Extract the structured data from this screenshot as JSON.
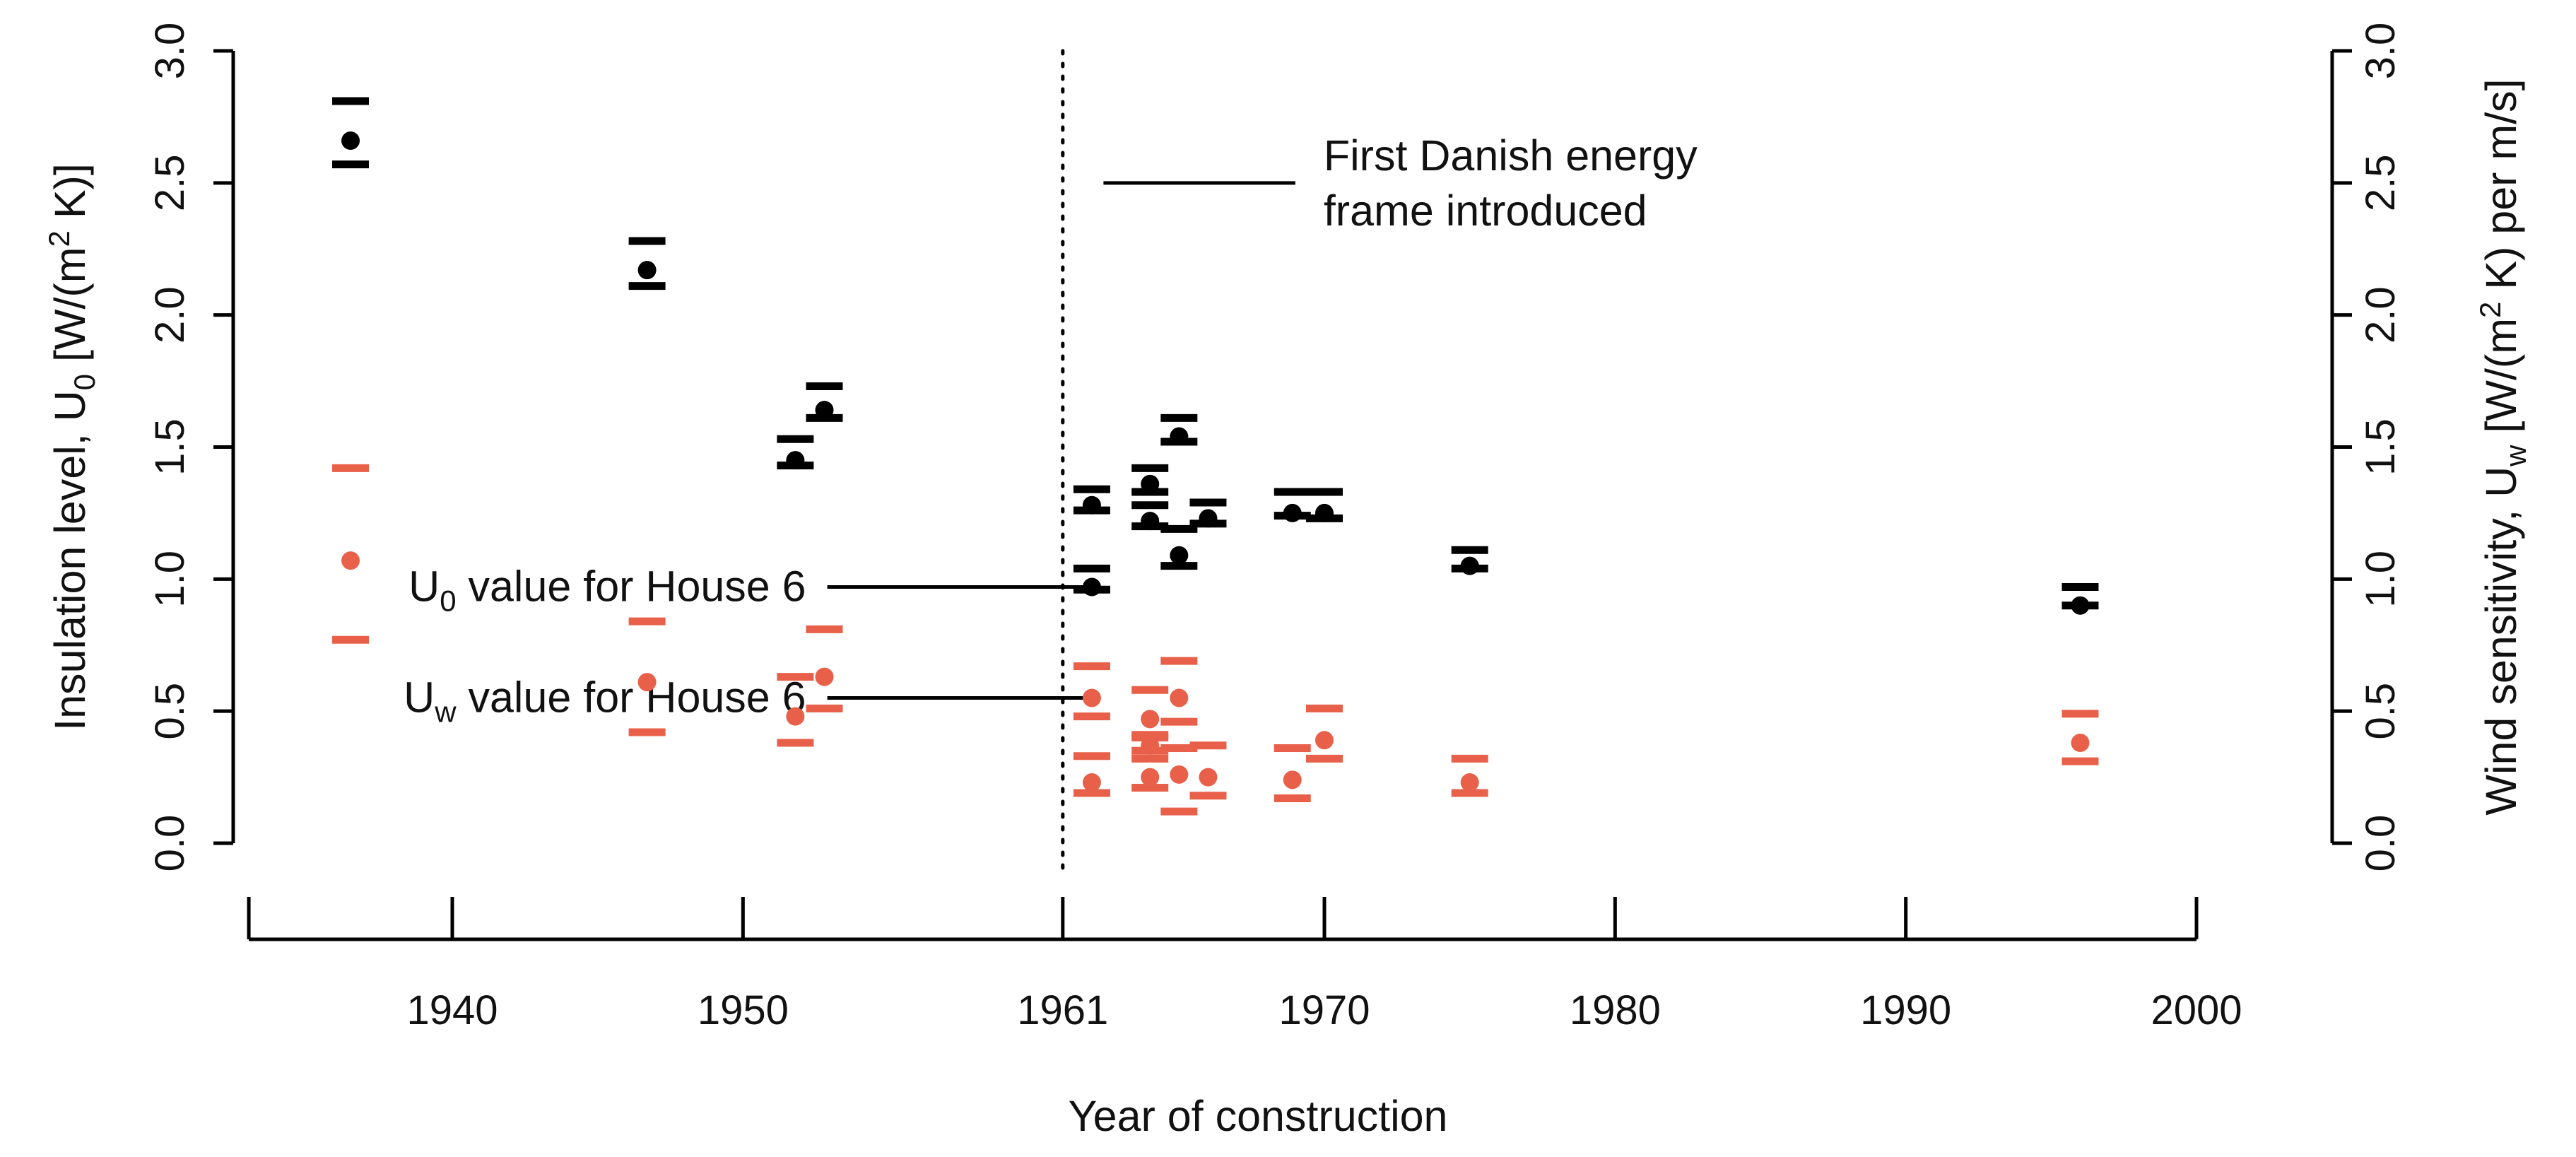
{
  "chart_data": {
    "type": "scatter",
    "xlabel": "Year of construction",
    "xlim": [
      1933,
      2000
    ],
    "x_ticks": [
      1940,
      1950,
      1961,
      1970,
      1980,
      1990,
      2000
    ],
    "x_tick_labels": [
      "1940",
      "1950",
      "1961",
      "1970",
      "1980",
      "1990",
      "2000"
    ],
    "y_left": {
      "label_prefix": "Insulation level, U",
      "label_sub": "0",
      "label_mid": " [W/(m",
      "label_sup": "2",
      "label_suffix": " K)]",
      "lim": [
        0,
        3
      ],
      "ticks": [
        0.0,
        0.5,
        1.0,
        1.5,
        2.0,
        2.5,
        3.0
      ],
      "tick_labels": [
        "0.0",
        "0.5",
        "1.0",
        "1.5",
        "2.0",
        "2.5",
        "3.0"
      ]
    },
    "y_right": {
      "label_prefix": "Wind sensitivity, U",
      "label_sub": "w",
      "label_mid": " [W/(m",
      "label_sup": "2",
      "label_suffix": " K) per m/s]",
      "lim": [
        0,
        3
      ],
      "ticks": [
        0.0,
        0.5,
        1.0,
        1.5,
        2.0,
        2.5,
        3.0
      ],
      "tick_labels": [
        "0.0",
        "0.5",
        "1.0",
        "1.5",
        "2.0",
        "2.5",
        "3.0"
      ]
    },
    "reference_line": {
      "x": 1961,
      "style": "dotted"
    },
    "series": [
      {
        "name": "U0",
        "axis": "left",
        "color": "#000000",
        "points": [
          {
            "x": 1936.5,
            "y": 2.66,
            "lower": 2.57,
            "upper": 2.81
          },
          {
            "x": 1946.7,
            "y": 2.17,
            "lower": 2.11,
            "upper": 2.28
          },
          {
            "x": 1951.8,
            "y": 1.45,
            "lower": 1.43,
            "upper": 1.53
          },
          {
            "x": 1952.8,
            "y": 1.64,
            "lower": 1.61,
            "upper": 1.73
          },
          {
            "x": 1962.0,
            "y": 1.28,
            "lower": 1.26,
            "upper": 1.34
          },
          {
            "x": 1962.0,
            "y": 0.97,
            "lower": 0.96,
            "upper": 1.04
          },
          {
            "x": 1964.0,
            "y": 1.36,
            "lower": 1.33,
            "upper": 1.42
          },
          {
            "x": 1964.0,
            "y": 1.22,
            "lower": 1.2,
            "upper": 1.28
          },
          {
            "x": 1965.0,
            "y": 1.54,
            "lower": 1.52,
            "upper": 1.61
          },
          {
            "x": 1965.0,
            "y": 1.09,
            "lower": 1.05,
            "upper": 1.19
          },
          {
            "x": 1966.0,
            "y": 1.23,
            "lower": 1.21,
            "upper": 1.29
          },
          {
            "x": 1968.9,
            "y": 1.25,
            "lower": 1.24,
            "upper": 1.33
          },
          {
            "x": 1970.0,
            "y": 1.25,
            "lower": 1.23,
            "upper": 1.33
          },
          {
            "x": 1975.0,
            "y": 1.05,
            "lower": 1.04,
            "upper": 1.11
          },
          {
            "x": 1996.0,
            "y": 0.9,
            "lower": 0.9,
            "upper": 0.97
          }
        ]
      },
      {
        "name": "Uw",
        "axis": "right",
        "color": "#e8604a",
        "points": [
          {
            "x": 1936.5,
            "y": 1.07,
            "lower": 0.77,
            "upper": 1.42
          },
          {
            "x": 1946.7,
            "y": 0.61,
            "lower": 0.42,
            "upper": 0.84
          },
          {
            "x": 1951.8,
            "y": 0.48,
            "lower": 0.38,
            "upper": 0.63
          },
          {
            "x": 1952.8,
            "y": 0.63,
            "lower": 0.51,
            "upper": 0.81
          },
          {
            "x": 1962.0,
            "y": 0.55,
            "lower": 0.48,
            "upper": 0.67
          },
          {
            "x": 1962.0,
            "y": 0.23,
            "lower": 0.19,
            "upper": 0.33
          },
          {
            "x": 1964.0,
            "y": 0.47,
            "lower": 0.41,
            "upper": 0.58
          },
          {
            "x": 1964.0,
            "y": 0.37,
            "lower": 0.35,
            "upper": 0.4
          },
          {
            "x": 1964.0,
            "y": 0.25,
            "lower": 0.21,
            "upper": 0.32
          },
          {
            "x": 1965.0,
            "y": 0.55,
            "lower": 0.46,
            "upper": 0.69
          },
          {
            "x": 1965.0,
            "y": 0.26,
            "lower": 0.12,
            "upper": 0.36
          },
          {
            "x": 1966.0,
            "y": 0.25,
            "lower": 0.18,
            "upper": 0.37
          },
          {
            "x": 1968.9,
            "y": 0.24,
            "lower": 0.17,
            "upper": 0.36
          },
          {
            "x": 1970.0,
            "y": 0.39,
            "lower": 0.32,
            "upper": 0.51
          },
          {
            "x": 1975.0,
            "y": 0.23,
            "lower": 0.19,
            "upper": 0.32
          },
          {
            "x": 1996.0,
            "y": 0.38,
            "lower": 0.31,
            "upper": 0.49
          }
        ]
      }
    ],
    "annotations": [
      {
        "id": "energy-frame",
        "lines": [
          "First Danish energy",
          "frame introduced"
        ],
        "pointer_from_x": 1962.4,
        "pointer_to_x": 1969.0,
        "pointer_y": 2.5
      },
      {
        "id": "u0-house6",
        "text_main": "U",
        "text_sub": "0",
        "text_rest": " value for House 6",
        "pointer_from_x": 1952.9,
        "pointer_to_x": 1962.0,
        "pointer_y": 0.97
      },
      {
        "id": "uw-house6",
        "text_main": "U",
        "text_sub": "w",
        "text_rest": " value for House 6",
        "pointer_from_x": 1952.9,
        "pointer_to_x": 1962.3,
        "pointer_y": 0.55
      }
    ]
  }
}
